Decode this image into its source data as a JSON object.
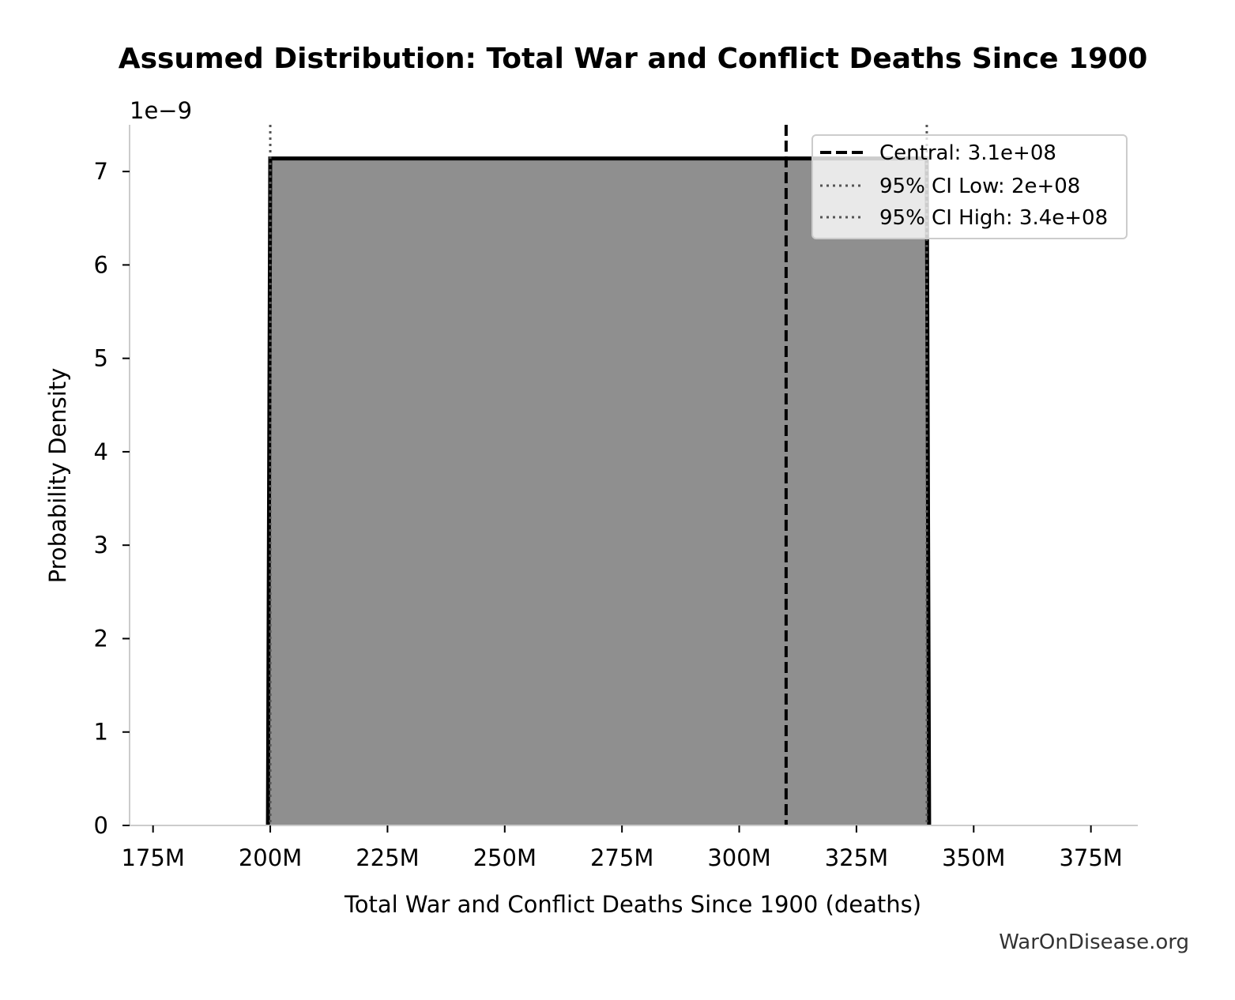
{
  "chart_data": {
    "type": "area",
    "title": "Assumed Distribution: Total War and Conflict Deaths Since 1900",
    "xlabel": "Total War and Conflict Deaths Since 1900 (deaths)",
    "ylabel": "Probability Density",
    "y_offset_label": "1e−9",
    "xlim": [
      170000000,
      385000000
    ],
    "ylim": [
      0,
      7.5e-09
    ],
    "x_ticks": [
      175000000,
      200000000,
      225000000,
      250000000,
      275000000,
      300000000,
      325000000,
      350000000,
      375000000
    ],
    "x_tick_labels": [
      "175M",
      "200M",
      "225M",
      "250M",
      "275M",
      "300M",
      "325M",
      "350M",
      "375M"
    ],
    "y_ticks": [
      0,
      1e-09,
      2e-09,
      3e-09,
      4e-09,
      5e-09,
      6e-09,
      7e-09
    ],
    "y_tick_labels": [
      "0",
      "1",
      "2",
      "3",
      "4",
      "5",
      "6",
      "7"
    ],
    "series": [
      {
        "x": [
          180000000,
          199500000,
          200000000,
          340000000,
          340500000,
          374500000
        ],
        "y": [
          0,
          0,
          7.14e-09,
          7.14e-09,
          0,
          0
        ],
        "fill": "#8f8f8f",
        "stroke": "#000000"
      }
    ],
    "reference_lines": [
      {
        "label": "Central: 3.1e+08",
        "x": 310000000,
        "style": "dashed",
        "color": "#000000"
      },
      {
        "label": "95% CI Low: 2e+08",
        "x": 200000000,
        "style": "dotted",
        "color": "#555555"
      },
      {
        "label": "95% CI High: 3.4e+08",
        "x": 340000000,
        "style": "dotted",
        "color": "#555555"
      }
    ],
    "legend_position": "top-right",
    "grid": false
  },
  "credit": "WarOnDisease.org"
}
